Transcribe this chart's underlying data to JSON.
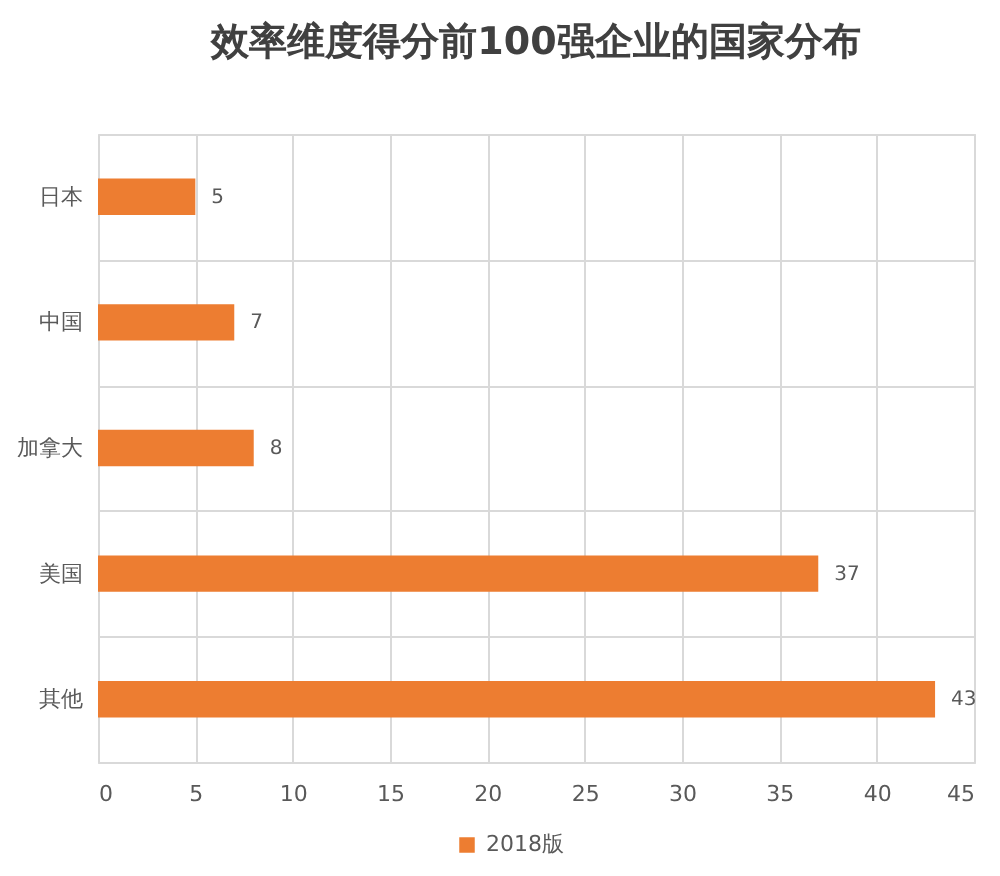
{
  "chart_data": {
    "type": "bar",
    "orientation": "horizontal",
    "title": "效率维度得分前100强企业的国家分布",
    "categories": [
      "日本",
      "中国",
      "加拿大",
      "美国",
      "其他"
    ],
    "series": [
      {
        "name": "2018版",
        "color": "#ed7d31",
        "values": [
          5,
          7,
          8,
          37,
          43
        ]
      }
    ],
    "xlim": [
      0,
      45
    ],
    "xticks": [
      0,
      5,
      10,
      15,
      20,
      25,
      30,
      35,
      40,
      45
    ],
    "grid": true,
    "legend": "bottom",
    "data_labels": true
  }
}
